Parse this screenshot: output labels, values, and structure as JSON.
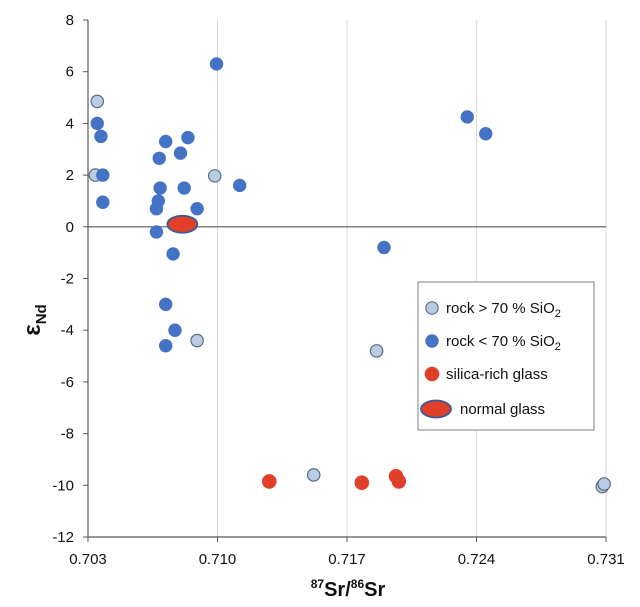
{
  "chart_data": {
    "type": "scatter",
    "xlabel": {
      "sup1": "87",
      "main1": "Sr/",
      "sup2": "86",
      "main2": "Sr"
    },
    "ylabel": {
      "main": "ε",
      "sub": "Nd"
    },
    "xlim": [
      0.703,
      0.731
    ],
    "ylim": [
      -12,
      8
    ],
    "xticks": [
      "0.703",
      "0.710",
      "0.717",
      "0.724",
      "0.731"
    ],
    "yticks": [
      "8",
      "6",
      "4",
      "2",
      "0",
      "-2",
      "-4",
      "-6",
      "-8",
      "-10",
      "-12"
    ],
    "grid": "vertical",
    "legend_position": "right",
    "colors": {
      "light_blue": "#b8cce4",
      "blue": "#4472c4",
      "red": "#e0402a",
      "outline": "#3b5a99"
    },
    "series": [
      {
        "name": "rock > 70 % SiO",
        "name_sub": "2",
        "marker": "light_blue",
        "points": [
          {
            "x": 0.7035,
            "y": 4.85
          },
          {
            "x": 0.7034,
            "y": 2.0
          },
          {
            "x": 0.70985,
            "y": 1.97
          },
          {
            "x": 0.7089,
            "y": -4.4
          },
          {
            "x": 0.7186,
            "y": -4.8
          },
          {
            "x": 0.7152,
            "y": -9.6
          },
          {
            "x": 0.7308,
            "y": -10.05
          },
          {
            "x": 0.7309,
            "y": -9.95
          }
        ]
      },
      {
        "name": "rock < 70 % SiO",
        "name_sub": "2",
        "marker": "blue",
        "points": [
          {
            "x": 0.70995,
            "y": 6.3
          },
          {
            "x": 0.7235,
            "y": 4.25
          },
          {
            "x": 0.7245,
            "y": 3.6
          },
          {
            "x": 0.7035,
            "y": 4.0
          },
          {
            "x": 0.7037,
            "y": 3.5
          },
          {
            "x": 0.7038,
            "y": 2.0
          },
          {
            "x": 0.7038,
            "y": 0.95
          },
          {
            "x": 0.7072,
            "y": 3.3
          },
          {
            "x": 0.7084,
            "y": 3.45
          },
          {
            "x": 0.70685,
            "y": 2.65
          },
          {
            "x": 0.708,
            "y": 2.85
          },
          {
            "x": 0.7069,
            "y": 1.5
          },
          {
            "x": 0.7082,
            "y": 1.5
          },
          {
            "x": 0.7112,
            "y": 1.6
          },
          {
            "x": 0.7068,
            "y": 1.0
          },
          {
            "x": 0.7067,
            "y": 0.7
          },
          {
            "x": 0.7089,
            "y": 0.7
          },
          {
            "x": 0.7067,
            "y": -0.2
          },
          {
            "x": 0.7076,
            "y": -1.05
          },
          {
            "x": 0.719,
            "y": -0.8
          },
          {
            "x": 0.7072,
            "y": -3.0
          },
          {
            "x": 0.7077,
            "y": -4.0
          },
          {
            "x": 0.7072,
            "y": -4.6
          }
        ]
      },
      {
        "name": "silica-rich glass",
        "name_sub": "",
        "marker": "red",
        "points": [
          {
            "x": 0.7128,
            "y": -9.85
          },
          {
            "x": 0.7178,
            "y": -9.9
          },
          {
            "x": 0.71965,
            "y": -9.65
          },
          {
            "x": 0.7198,
            "y": -9.85
          }
        ]
      },
      {
        "name": "normal glass",
        "name_sub": "",
        "marker": "red_ellipse",
        "points": [
          {
            "x": 0.7081,
            "y": 0.1
          }
        ]
      }
    ]
  }
}
